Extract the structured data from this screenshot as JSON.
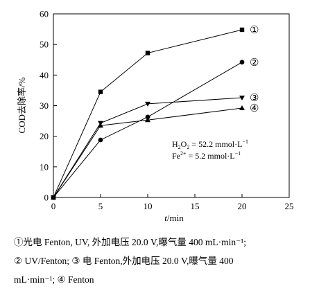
{
  "chart_data": {
    "type": "line",
    "xlabel_var": "t",
    "xlabel_unit": "/min",
    "ylabel": "COD去除率/%",
    "xlim": [
      0,
      25
    ],
    "ylim": [
      0,
      60
    ],
    "x_ticks": [
      0,
      5,
      10,
      15,
      20,
      25
    ],
    "y_ticks": [
      0,
      10,
      20,
      30,
      40,
      50,
      60
    ],
    "grid": false,
    "legend": "inline-right",
    "series": [
      {
        "name": "①",
        "marker": "square",
        "x": [
          0,
          5,
          10,
          20
        ],
        "values": [
          0,
          34.5,
          47.2,
          54.8
        ]
      },
      {
        "name": "②",
        "marker": "circle",
        "x": [
          0,
          5,
          10,
          20
        ],
        "values": [
          0,
          18.8,
          26.3,
          44.2
        ]
      },
      {
        "name": "③",
        "marker": "triangle-down",
        "x": [
          0,
          5,
          10,
          20
        ],
        "values": [
          0,
          24.3,
          30.6,
          32.6
        ]
      },
      {
        "name": "④",
        "marker": "triangle-up",
        "x": [
          0,
          5,
          10,
          20
        ],
        "values": [
          0,
          23.5,
          25.3,
          29.2
        ]
      }
    ],
    "annotations": {
      "line1_prefix": "H",
      "line1_sub": "2",
      "line1_mid": "O",
      "line1_sub2": "2",
      "line1_value": " = 52.2 mmol·L",
      "line1_sup": "−1",
      "line2_prefix": "Fe",
      "line2_sup": "2+",
      "line2_value": " = 5.2 mmol·L",
      "line2_sup2": "−1"
    }
  },
  "caption": {
    "line1": "①光电 Fenton, UV, 外加电压 20.0 V,曝气量 400 mL·min⁻¹;",
    "line2": "② UV/Fenton; ③ 电 Fenton,外加电压 20.0 V,曝气量 400",
    "line3": "mL·min⁻¹; ④ Fenton"
  }
}
